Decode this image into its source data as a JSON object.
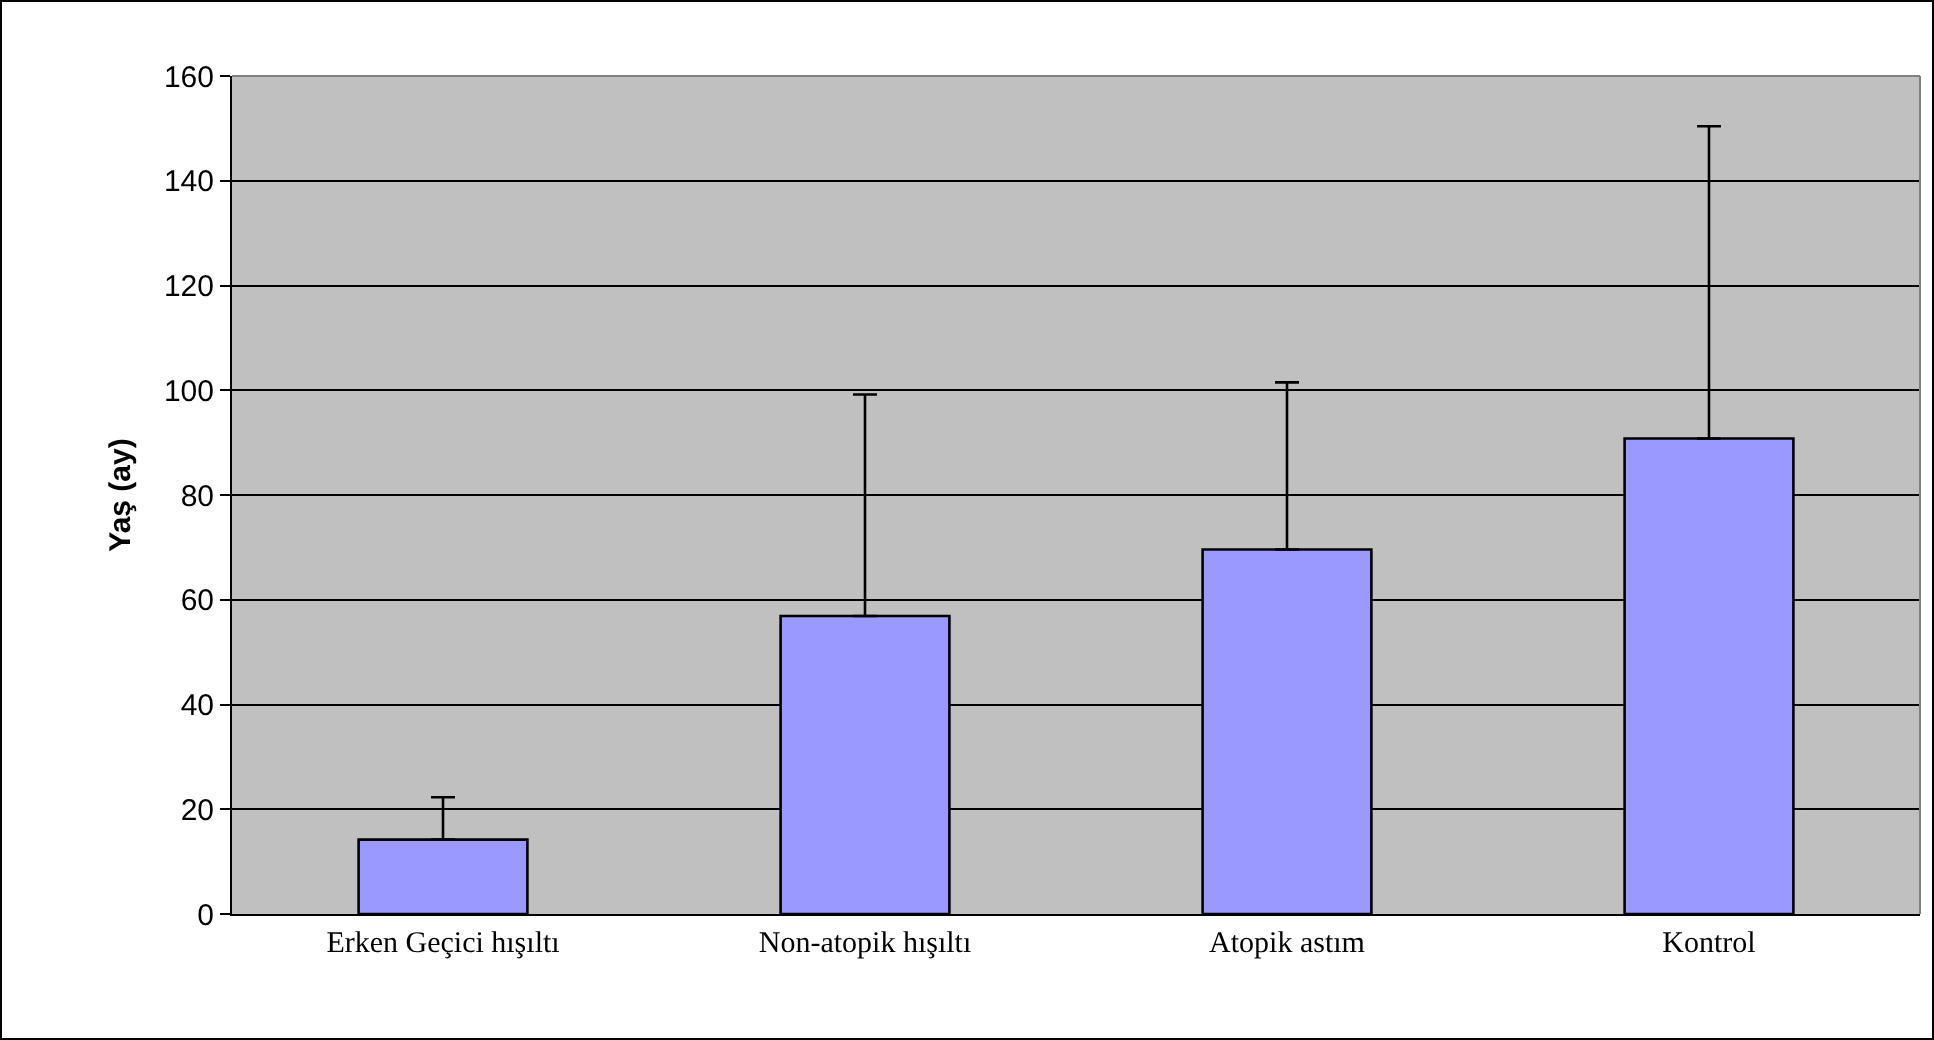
{
  "chart_data": {
    "type": "bar",
    "ylabel": "Yaş (ay)",
    "categories": [
      "Erken Geçici hışıltı",
      "Non-atopik hışıltı",
      "Atopik astım",
      "Kontrol"
    ],
    "values": [
      14.2,
      56.9,
      69.6,
      90.8
    ],
    "errors": [
      [
        14.2,
        22.3
      ],
      [
        56.9,
        99.2
      ],
      [
        69.6,
        101.5
      ],
      [
        90.8,
        150.4
      ]
    ],
    "color": "#9999ff",
    "ylim": [
      0,
      160
    ],
    "yticks": [
      0,
      20,
      40,
      60,
      80,
      100,
      120,
      140,
      160
    ],
    "grid": "y"
  }
}
